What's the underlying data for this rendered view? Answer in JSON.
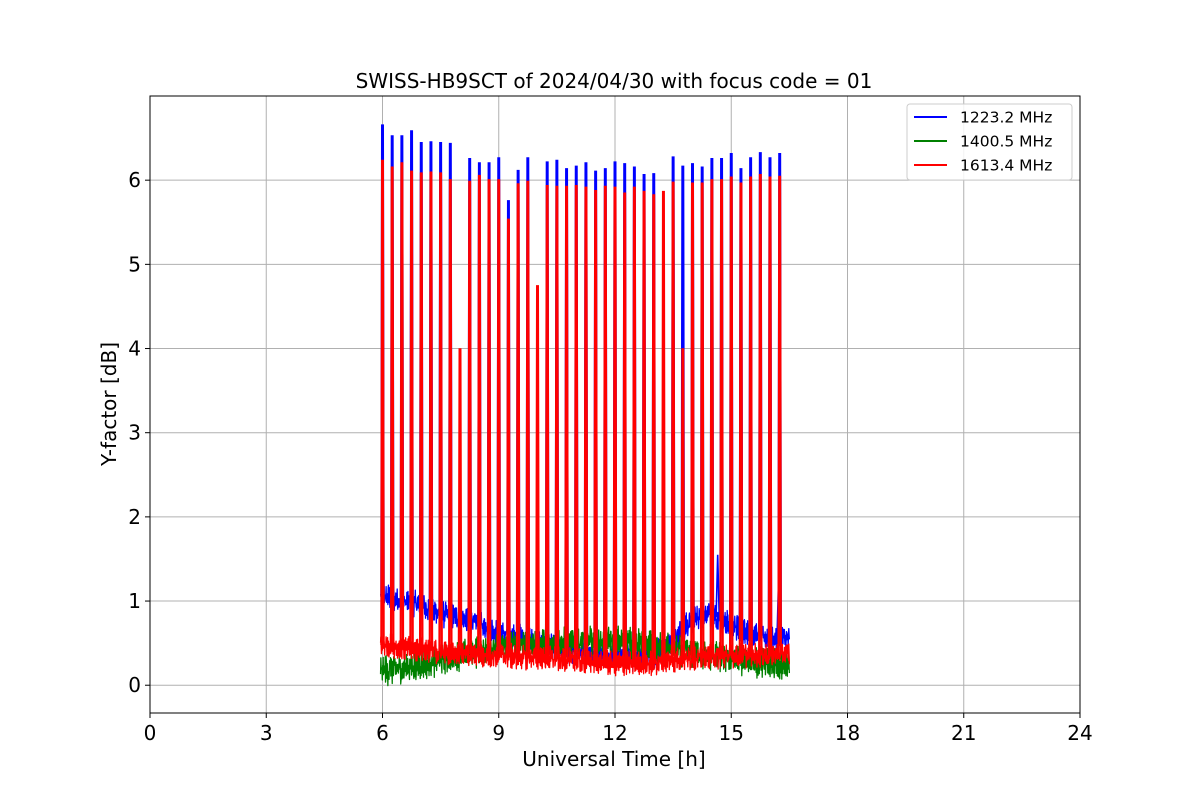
{
  "chart_data": {
    "type": "line",
    "title": "SWISS-HB9SCT of 2024/04/30 with focus code = 01",
    "xlabel": "Universal Time [h]",
    "ylabel": "Y-factor [dB]",
    "xlim": [
      0,
      24
    ],
    "ylim": [
      -0.33,
      7.0
    ],
    "xticks": [
      0,
      3,
      6,
      9,
      12,
      15,
      18,
      21,
      24
    ],
    "xtick_labels": [
      "0",
      "3",
      "6",
      "9",
      "12",
      "15",
      "18",
      "21",
      "24"
    ],
    "yticks": [
      0,
      1,
      2,
      3,
      4,
      5,
      6
    ],
    "ytick_labels": [
      "0",
      "1",
      "2",
      "3",
      "4",
      "5",
      "6"
    ],
    "grid": true,
    "legend_position": "top-right",
    "x_start": 5.95,
    "x_end": 16.5,
    "series": [
      {
        "name": "1223.2 MHz",
        "color": "#0000ff",
        "baseline": [
          [
            5.95,
            1.05
          ],
          [
            6.2,
            1.05
          ],
          [
            6.5,
            1.0
          ],
          [
            7.0,
            0.95
          ],
          [
            7.5,
            0.85
          ],
          [
            8.0,
            0.8
          ],
          [
            8.5,
            0.72
          ],
          [
            9.0,
            0.62
          ],
          [
            9.5,
            0.58
          ],
          [
            10.0,
            0.5
          ],
          [
            10.5,
            0.42
          ],
          [
            11.0,
            0.4
          ],
          [
            11.5,
            0.38
          ],
          [
            12.0,
            0.36
          ],
          [
            12.5,
            0.32
          ],
          [
            13.0,
            0.35
          ],
          [
            13.5,
            0.55
          ],
          [
            14.0,
            0.78
          ],
          [
            14.5,
            0.85
          ],
          [
            15.0,
            0.72
          ],
          [
            15.5,
            0.62
          ],
          [
            16.0,
            0.55
          ],
          [
            16.5,
            0.55
          ]
        ],
        "noise": 0.13,
        "spikes": [
          [
            6.0,
            6.65
          ],
          [
            6.25,
            6.52
          ],
          [
            6.5,
            6.52
          ],
          [
            6.75,
            6.58
          ],
          [
            7.0,
            6.44
          ],
          [
            7.25,
            6.45
          ],
          [
            7.5,
            6.44
          ],
          [
            7.75,
            6.43
          ],
          [
            8.25,
            6.25
          ],
          [
            8.5,
            6.2
          ],
          [
            8.75,
            6.2
          ],
          [
            9.0,
            6.26
          ],
          [
            9.25,
            5.75
          ],
          [
            9.5,
            6.11
          ],
          [
            9.75,
            6.26
          ],
          [
            10.25,
            6.21
          ],
          [
            10.5,
            6.23
          ],
          [
            10.75,
            6.13
          ],
          [
            11.0,
            6.16
          ],
          [
            11.25,
            6.2
          ],
          [
            11.5,
            6.1
          ],
          [
            11.75,
            6.13
          ],
          [
            12.0,
            6.21
          ],
          [
            12.25,
            6.19
          ],
          [
            12.5,
            6.15
          ],
          [
            12.75,
            6.06
          ],
          [
            13.0,
            6.07
          ],
          [
            13.5,
            6.27
          ],
          [
            13.75,
            6.16
          ],
          [
            14.0,
            6.19
          ],
          [
            14.25,
            6.15
          ],
          [
            14.5,
            6.25
          ],
          [
            14.75,
            6.25
          ],
          [
            15.0,
            6.31
          ],
          [
            15.25,
            6.13
          ],
          [
            15.5,
            6.26
          ],
          [
            15.75,
            6.32
          ],
          [
            16.0,
            6.26
          ],
          [
            16.25,
            6.31
          ]
        ],
        "small_spikes": [
          [
            14.65,
            1.55
          ],
          [
            16.22,
            1.22
          ]
        ]
      },
      {
        "name": "1400.5 MHz",
        "color": "#008000",
        "baseline": [
          [
            5.95,
            0.18
          ],
          [
            6.5,
            0.2
          ],
          [
            7.0,
            0.25
          ],
          [
            7.5,
            0.3
          ],
          [
            8.0,
            0.35
          ],
          [
            8.5,
            0.4
          ],
          [
            9.0,
            0.45
          ],
          [
            9.5,
            0.5
          ],
          [
            10.0,
            0.5
          ],
          [
            10.5,
            0.5
          ],
          [
            11.0,
            0.52
          ],
          [
            11.5,
            0.52
          ],
          [
            12.0,
            0.52
          ],
          [
            12.5,
            0.5
          ],
          [
            13.0,
            0.45
          ],
          [
            13.5,
            0.42
          ],
          [
            14.0,
            0.38
          ],
          [
            14.5,
            0.35
          ],
          [
            15.0,
            0.32
          ],
          [
            15.5,
            0.28
          ],
          [
            16.0,
            0.25
          ],
          [
            16.5,
            0.22
          ]
        ],
        "noise": 0.15,
        "spikes": [],
        "small_spikes": []
      },
      {
        "name": "1613.4 MHz",
        "color": "#ff0000",
        "baseline": [
          [
            5.95,
            0.48
          ],
          [
            6.5,
            0.45
          ],
          [
            7.0,
            0.42
          ],
          [
            7.5,
            0.4
          ],
          [
            8.0,
            0.38
          ],
          [
            8.5,
            0.36
          ],
          [
            9.0,
            0.35
          ],
          [
            9.5,
            0.34
          ],
          [
            10.0,
            0.33
          ],
          [
            10.5,
            0.31
          ],
          [
            11.0,
            0.29
          ],
          [
            11.5,
            0.28
          ],
          [
            12.0,
            0.26
          ],
          [
            12.5,
            0.25
          ],
          [
            13.0,
            0.26
          ],
          [
            13.5,
            0.3
          ],
          [
            14.0,
            0.32
          ],
          [
            14.5,
            0.34
          ],
          [
            15.0,
            0.35
          ],
          [
            15.5,
            0.36
          ],
          [
            16.0,
            0.37
          ],
          [
            16.5,
            0.37
          ]
        ],
        "noise": 0.12,
        "spikes": [
          [
            6.0,
            6.23
          ],
          [
            6.25,
            6.15
          ],
          [
            6.5,
            6.2
          ],
          [
            6.75,
            6.1
          ],
          [
            7.0,
            6.08
          ],
          [
            7.25,
            6.09
          ],
          [
            7.5,
            6.08
          ],
          [
            7.75,
            6.0
          ],
          [
            8.0,
            3.99
          ],
          [
            8.25,
            5.98
          ],
          [
            8.5,
            6.05
          ],
          [
            8.75,
            6.0
          ],
          [
            9.0,
            6.0
          ],
          [
            9.25,
            5.53
          ],
          [
            9.5,
            5.95
          ],
          [
            9.75,
            5.98
          ],
          [
            10.0,
            4.74
          ],
          [
            10.25,
            5.93
          ],
          [
            10.5,
            5.92
          ],
          [
            10.75,
            5.92
          ],
          [
            11.0,
            5.93
          ],
          [
            11.25,
            5.91
          ],
          [
            11.5,
            5.87
          ],
          [
            11.75,
            5.92
          ],
          [
            12.0,
            5.91
          ],
          [
            12.25,
            5.84
          ],
          [
            12.5,
            5.91
          ],
          [
            12.75,
            5.86
          ],
          [
            13.0,
            5.82
          ],
          [
            13.25,
            5.86
          ],
          [
            13.5,
            5.97
          ],
          [
            13.75,
            3.99
          ],
          [
            14.0,
            5.96
          ],
          [
            14.25,
            5.96
          ],
          [
            14.5,
            6.0
          ],
          [
            14.75,
            6.0
          ],
          [
            15.0,
            6.03
          ],
          [
            15.25,
            5.96
          ],
          [
            15.5,
            6.03
          ],
          [
            15.75,
            6.06
          ],
          [
            16.0,
            6.03
          ],
          [
            16.25,
            6.04
          ]
        ],
        "small_spikes": []
      }
    ]
  }
}
